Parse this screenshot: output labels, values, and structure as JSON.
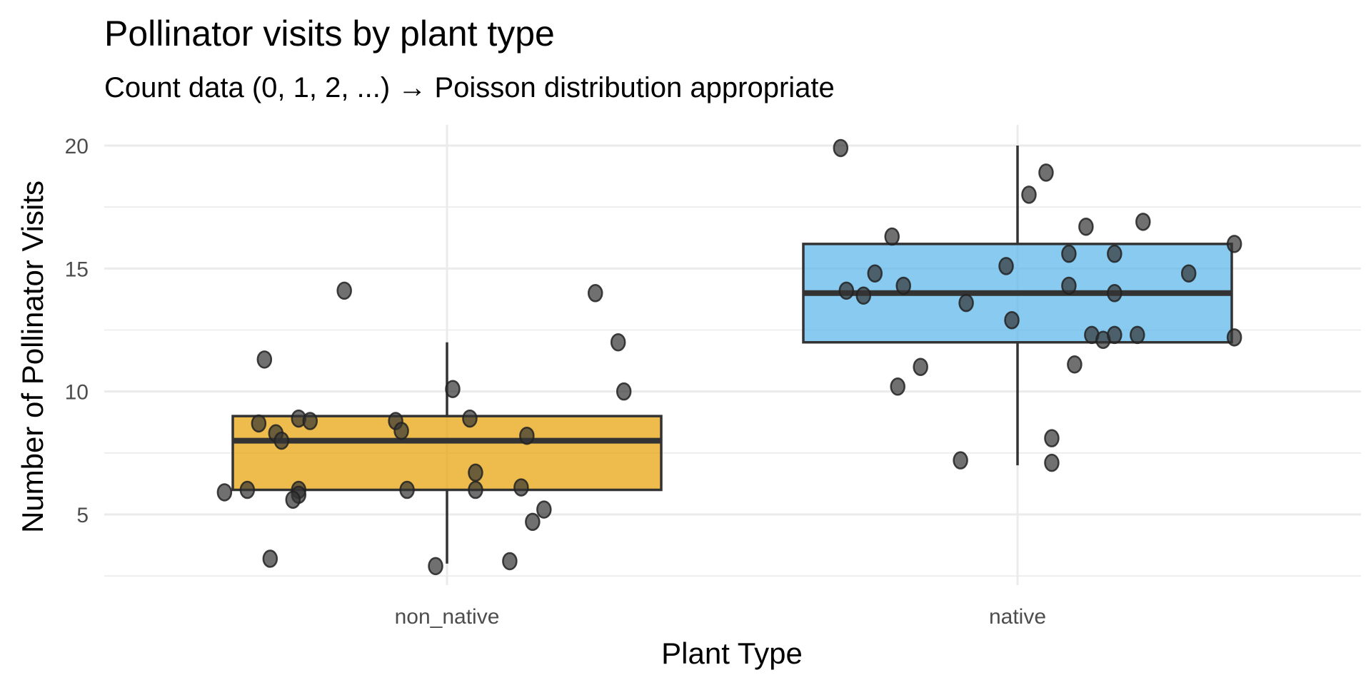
{
  "chart_data": {
    "type": "boxplot",
    "title": "Pollinator visits by plant type",
    "subtitle": "Count data (0, 1, 2, ...) → Poisson distribution appropriate",
    "xlabel": "Plant Type",
    "ylabel": "Number of Pollinator Visits",
    "categories": [
      "non_native",
      "native"
    ],
    "ylim": [
      2.3,
      20.8
    ],
    "yticks": [
      5,
      10,
      15,
      20
    ],
    "grid": true,
    "legend": "none",
    "series": [
      {
        "name": "non_native",
        "color": "#E69F00",
        "box": {
          "lower_whisker": 3,
          "q1": 6,
          "median": 8,
          "q3": 9,
          "upper_whisker": 12
        },
        "points": [
          {
            "jitter": -0.18,
            "value": 14.1
          },
          {
            "jitter": 0.26,
            "value": 14.0
          },
          {
            "jitter": -0.32,
            "value": 11.3
          },
          {
            "jitter": 0.3,
            "value": 12.0
          },
          {
            "jitter": 0.01,
            "value": 10.1
          },
          {
            "jitter": 0.31,
            "value": 10.0
          },
          {
            "jitter": -0.33,
            "value": 8.7
          },
          {
            "jitter": -0.3,
            "value": 8.3
          },
          {
            "jitter": -0.29,
            "value": 8.0
          },
          {
            "jitter": -0.26,
            "value": 8.9
          },
          {
            "jitter": -0.24,
            "value": 8.8
          },
          {
            "jitter": -0.09,
            "value": 8.8
          },
          {
            "jitter": -0.08,
            "value": 8.4
          },
          {
            "jitter": 0.04,
            "value": 8.9
          },
          {
            "jitter": 0.14,
            "value": 8.2
          },
          {
            "jitter": 0.05,
            "value": 6.7
          },
          {
            "jitter": -0.39,
            "value": 5.9
          },
          {
            "jitter": -0.35,
            "value": 6.0
          },
          {
            "jitter": -0.26,
            "value": 6.0
          },
          {
            "jitter": -0.26,
            "value": 5.8
          },
          {
            "jitter": -0.27,
            "value": 5.6
          },
          {
            "jitter": -0.07,
            "value": 6.0
          },
          {
            "jitter": 0.05,
            "value": 6.0
          },
          {
            "jitter": 0.13,
            "value": 6.1
          },
          {
            "jitter": 0.17,
            "value": 5.2
          },
          {
            "jitter": 0.15,
            "value": 4.7
          },
          {
            "jitter": -0.31,
            "value": 3.2
          },
          {
            "jitter": -0.02,
            "value": 2.9
          },
          {
            "jitter": 0.11,
            "value": 3.1
          }
        ]
      },
      {
        "name": "native",
        "color": "#56B4E9",
        "box": {
          "lower_whisker": 7,
          "q1": 12,
          "median": 14,
          "q3": 16,
          "upper_whisker": 20
        },
        "points": [
          {
            "jitter": -0.31,
            "value": 19.9
          },
          {
            "jitter": 0.05,
            "value": 18.9
          },
          {
            "jitter": 0.02,
            "value": 18.0
          },
          {
            "jitter": -0.22,
            "value": 16.3
          },
          {
            "jitter": 0.12,
            "value": 16.7
          },
          {
            "jitter": 0.22,
            "value": 16.9
          },
          {
            "jitter": 0.38,
            "value": 16.0
          },
          {
            "jitter": -0.02,
            "value": 15.1
          },
          {
            "jitter": 0.09,
            "value": 15.6
          },
          {
            "jitter": 0.17,
            "value": 15.6
          },
          {
            "jitter": 0.3,
            "value": 14.8
          },
          {
            "jitter": -0.25,
            "value": 14.8
          },
          {
            "jitter": -0.3,
            "value": 14.1
          },
          {
            "jitter": -0.27,
            "value": 13.9
          },
          {
            "jitter": -0.2,
            "value": 14.3
          },
          {
            "jitter": 0.09,
            "value": 14.3
          },
          {
            "jitter": 0.17,
            "value": 14.0
          },
          {
            "jitter": -0.09,
            "value": 13.6
          },
          {
            "jitter": -0.01,
            "value": 12.9
          },
          {
            "jitter": 0.13,
            "value": 12.3
          },
          {
            "jitter": 0.15,
            "value": 12.1
          },
          {
            "jitter": 0.17,
            "value": 12.3
          },
          {
            "jitter": 0.21,
            "value": 12.3
          },
          {
            "jitter": 0.38,
            "value": 12.2
          },
          {
            "jitter": -0.17,
            "value": 11.0
          },
          {
            "jitter": -0.21,
            "value": 10.2
          },
          {
            "jitter": 0.1,
            "value": 11.1
          },
          {
            "jitter": 0.06,
            "value": 8.1
          },
          {
            "jitter": -0.1,
            "value": 7.2
          },
          {
            "jitter": 0.06,
            "value": 7.1
          }
        ]
      }
    ],
    "box_style": {
      "outline": "#333333",
      "fill_opacity": 0.7
    },
    "point_style": {
      "fill": "#333333",
      "fill_opacity": 0.7
    }
  }
}
